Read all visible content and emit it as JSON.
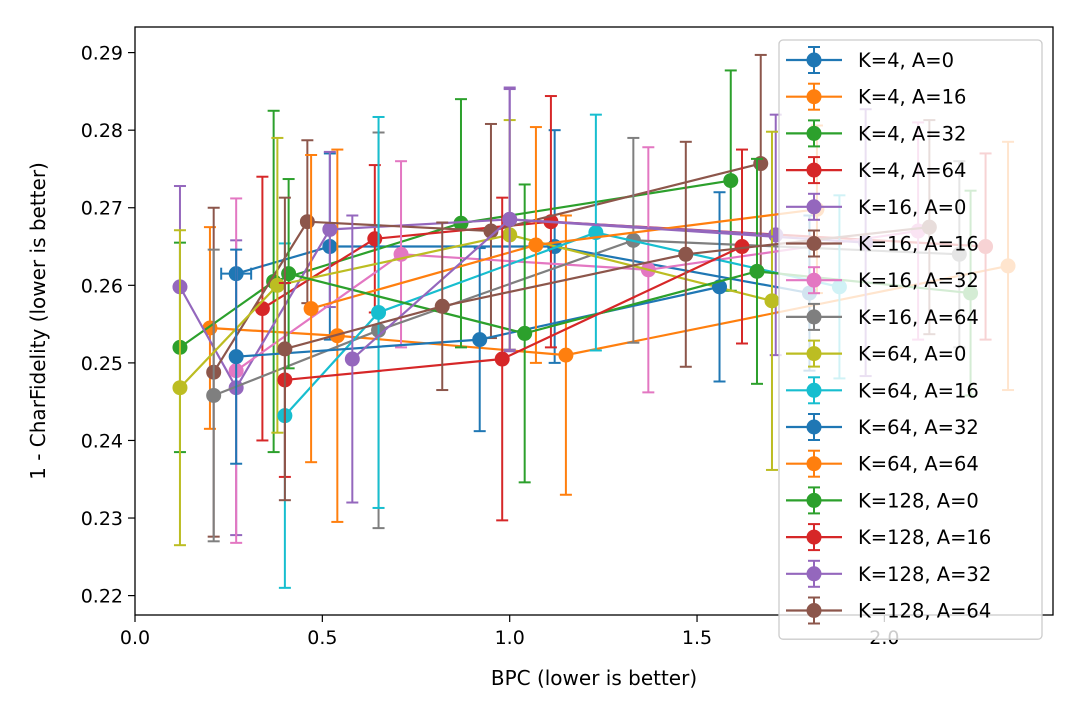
{
  "chart_data": {
    "type": "line",
    "title": "",
    "xlabel": "BPC (lower is better)",
    "ylabel": "1 - CharFidelity (lower is better)",
    "xlim": [
      0.0,
      2.45
    ],
    "ylim": [
      0.2175,
      0.2933
    ],
    "xticks": [
      "0.0",
      "0.5",
      "1.0",
      "1.5",
      "2.0"
    ],
    "yticks": [
      "0.22",
      "0.23",
      "0.24",
      "0.25",
      "0.26",
      "0.27",
      "0.28",
      "0.29"
    ],
    "grid": false,
    "legend_position": "right",
    "error_bars": true,
    "series": [
      {
        "name": "K=4, A=0",
        "color": "#1f77b4",
        "points": [
          {
            "x": 0.27,
            "y": 0.2615,
            "yerr": 0.0,
            "xerr": 0.04
          },
          {
            "x": 0.52,
            "y": 0.265,
            "yerr": 0.012
          },
          {
            "x": 1.12,
            "y": 0.265,
            "yerr": 0.015
          },
          {
            "x": 1.8,
            "y": 0.259,
            "yerr": 0.01
          }
        ]
      },
      {
        "name": "K=4, A=16",
        "color": "#ff7f0e",
        "points": [
          {
            "x": 0.2,
            "y": 0.2545,
            "yerr": 0.013
          },
          {
            "x": 0.54,
            "y": 0.2535,
            "yerr": 0.024
          },
          {
            "x": 1.15,
            "y": 0.251,
            "yerr": 0.018
          },
          {
            "x": 2.33,
            "y": 0.2625,
            "yerr": 0.016
          }
        ]
      },
      {
        "name": "K=4, A=32",
        "color": "#2ca02c",
        "points": [
          {
            "x": 0.12,
            "y": 0.252,
            "yerr": 0.0135
          },
          {
            "x": 0.37,
            "y": 0.2605,
            "yerr": 0.022
          },
          {
            "x": 0.87,
            "y": 0.268,
            "yerr": 0.016
          },
          {
            "x": 1.59,
            "y": 0.2735,
            "yerr": 0.0142
          }
        ]
      },
      {
        "name": "K=4, A=64",
        "color": "#d62728",
        "points": [
          {
            "x": 0.34,
            "y": 0.257,
            "yerr": 0.017
          },
          {
            "x": 0.64,
            "y": 0.266,
            "yerr": 0.0095
          },
          {
            "x": 1.11,
            "y": 0.2682,
            "yerr": 0.0162
          },
          {
            "x": 2.27,
            "y": 0.265,
            "yerr": 0.012
          }
        ]
      },
      {
        "name": "K=16, A=0",
        "color": "#9467bd",
        "points": [
          {
            "x": 0.12,
            "y": 0.2598,
            "yerr": 0.013
          },
          {
            "x": 0.27,
            "y": 0.2468,
            "yerr": 0.019
          },
          {
            "x": 0.52,
            "y": 0.2672,
            "yerr": 0.01
          },
          {
            "x": 1.0,
            "y": 0.2685,
            "yerr": 0.017
          },
          {
            "x": 1.71,
            "y": 0.2665,
            "yerr": 0.0155
          }
        ]
      },
      {
        "name": "K=16, A=16",
        "color": "#8c564b",
        "points": [
          {
            "x": 0.21,
            "y": 0.2488,
            "yerr": 0.0212
          },
          {
            "x": 0.46,
            "y": 0.2682,
            "yerr": 0.0105
          },
          {
            "x": 0.95,
            "y": 0.267,
            "yerr": 0.0138
          },
          {
            "x": 1.67,
            "y": 0.2757,
            "yerr": 0.014
          }
        ]
      },
      {
        "name": "K=16, A=32",
        "color": "#e377c2",
        "points": [
          {
            "x": 0.27,
            "y": 0.249,
            "yerr": 0.0222
          },
          {
            "x": 0.71,
            "y": 0.264,
            "yerr": 0.012
          },
          {
            "x": 1.37,
            "y": 0.262,
            "yerr": 0.0158
          },
          {
            "x": 2.09,
            "y": 0.267,
            "yerr": 0.014
          }
        ]
      },
      {
        "name": "K=16, A=64",
        "color": "#7f7f7f",
        "points": [
          {
            "x": 0.21,
            "y": 0.2458,
            "yerr": 0.0188
          },
          {
            "x": 0.65,
            "y": 0.2542,
            "yerr": 0.0255
          },
          {
            "x": 1.33,
            "y": 0.2658,
            "yerr": 0.0132
          },
          {
            "x": 2.2,
            "y": 0.264,
            "yerr": 0.012
          }
        ]
      },
      {
        "name": "K=64, A=0",
        "color": "#bcbd22",
        "points": [
          {
            "x": 0.12,
            "y": 0.2468,
            "yerr": 0.0203
          },
          {
            "x": 0.38,
            "y": 0.26,
            "yerr": 0.019
          },
          {
            "x": 1.0,
            "y": 0.2665,
            "yerr": 0.0148
          },
          {
            "x": 1.7,
            "y": 0.258,
            "yerr": 0.0218
          }
        ]
      },
      {
        "name": "K=64, A=16",
        "color": "#17becf",
        "points": [
          {
            "x": 0.4,
            "y": 0.2432,
            "yerr": 0.0222
          },
          {
            "x": 0.65,
            "y": 0.2565,
            "yerr": 0.0252
          },
          {
            "x": 1.23,
            "y": 0.2668,
            "yerr": 0.0152
          },
          {
            "x": 1.88,
            "y": 0.2598,
            "yerr": 0.0118
          }
        ]
      },
      {
        "name": "K=64, A=32",
        "color": "#1f77b4",
        "points": [
          {
            "x": 0.27,
            "y": 0.2508,
            "yerr": 0.0138
          },
          {
            "x": 0.92,
            "y": 0.253,
            "yerr": 0.0118
          },
          {
            "x": 1.56,
            "y": 0.2598,
            "yerr": 0.0122
          }
        ]
      },
      {
        "name": "K=64, A=64",
        "color": "#ff7f0e",
        "points": [
          {
            "x": 0.47,
            "y": 0.257,
            "yerr": 0.0198
          },
          {
            "x": 1.07,
            "y": 0.2652,
            "yerr": 0.0152
          },
          {
            "x": 1.82,
            "y": 0.2698,
            "yerr": 0.0108
          }
        ]
      },
      {
        "name": "K=128, A=0",
        "color": "#2ca02c",
        "points": [
          {
            "x": 0.41,
            "y": 0.2615,
            "yerr": 0.0122
          },
          {
            "x": 1.04,
            "y": 0.2538,
            "yerr": 0.0192
          },
          {
            "x": 1.66,
            "y": 0.2618,
            "yerr": 0.0145
          },
          {
            "x": 2.23,
            "y": 0.259,
            "yerr": 0.0132
          }
        ]
      },
      {
        "name": "K=128, A=16",
        "color": "#d62728",
        "points": [
          {
            "x": 0.4,
            "y": 0.2478,
            "yerr": 0.0125
          },
          {
            "x": 0.98,
            "y": 0.2505,
            "yerr": 0.0208
          },
          {
            "x": 1.62,
            "y": 0.265,
            "yerr": 0.0125
          }
        ]
      },
      {
        "name": "K=128, A=32",
        "color": "#9467bd",
        "points": [
          {
            "x": 0.58,
            "y": 0.2505,
            "yerr": 0.0185
          },
          {
            "x": 1.0,
            "y": 0.2685,
            "yerr": 0.0168
          },
          {
            "x": 1.95,
            "y": 0.2655,
            "yerr": 0.0172
          }
        ]
      },
      {
        "name": "K=128, A=64",
        "color": "#8c564b",
        "points": [
          {
            "x": 0.4,
            "y": 0.2518,
            "yerr": 0.0195
          },
          {
            "x": 0.82,
            "y": 0.2573,
            "yerr": 0.0108
          },
          {
            "x": 1.47,
            "y": 0.264,
            "yerr": 0.0145
          },
          {
            "x": 2.12,
            "y": 0.2675,
            "yerr": 0.0138
          }
        ]
      }
    ]
  }
}
